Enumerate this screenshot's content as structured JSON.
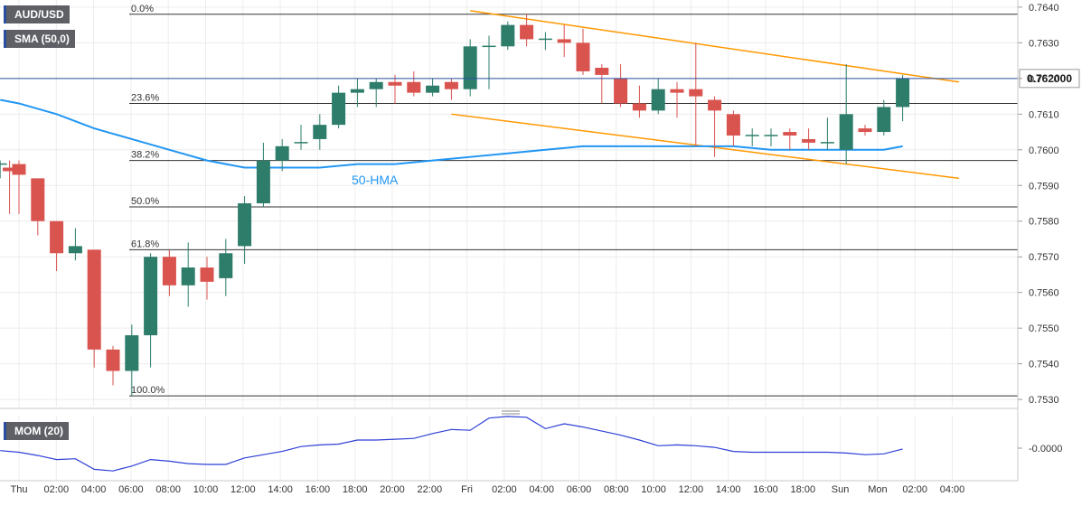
{
  "symbol_label": "AUD/USD",
  "indicator_label": "SMA (50,0)",
  "hma_label": "50-HMA",
  "mom_label": "MOM (20)",
  "price_tag": "0.762000",
  "mom_tick_label": "-0.0000",
  "colors": {
    "up": "#2e7d6b",
    "down": "#d9534f",
    "hma": "#2196f3",
    "channel": "#ff9800",
    "mom": "#2e3fd6",
    "grid": "#ececec",
    "fib": "#333333",
    "price_tag_bg": "#ffffff"
  },
  "chart_data": {
    "type": "candlestick",
    "y_ticks": [
      "0.7640",
      "0.7630",
      "0.7620",
      "0.7610",
      "0.7600",
      "0.7590",
      "0.7580",
      "0.7570",
      "0.7560",
      "0.7550",
      "0.7540",
      "0.7530"
    ],
    "ylim": [
      0.7528,
      0.7642
    ],
    "x_ticks": [
      "Thu",
      "02:00",
      "04:00",
      "06:00",
      "08:00",
      "10:00",
      "12:00",
      "14:00",
      "16:00",
      "18:00",
      "20:00",
      "22:00",
      "Fri",
      "02:00",
      "04:00",
      "06:00",
      "08:00",
      "10:00",
      "12:00",
      "14:00",
      "16:00",
      "18:00",
      "Sun",
      "Mon",
      "02:00",
      "04:00"
    ],
    "fib_levels": [
      {
        "label": "0.0%",
        "value": 0.7638
      },
      {
        "label": "23.6%",
        "value": 0.7613
      },
      {
        "label": "38.2%",
        "value": 0.7597
      },
      {
        "label": "50.0%",
        "value": 0.7584
      },
      {
        "label": "61.8%",
        "value": 0.7572
      },
      {
        "label": "100.0%",
        "value": 0.7531
      }
    ],
    "current_price": 0.762,
    "candles": [
      {
        "t": -1,
        "o": 0.7596,
        "h": 0.7597,
        "l": 0.7592,
        "c": 0.7596
      },
      {
        "t": -0.5,
        "o": 0.7595,
        "h": 0.7597,
        "l": 0.7582,
        "c": 0.7594
      },
      {
        "t": 0,
        "o": 0.7596,
        "h": 0.7597,
        "l": 0.7582,
        "c": 0.7593
      },
      {
        "t": 1,
        "o": 0.7592,
        "h": 0.7592,
        "l": 0.7576,
        "c": 0.758
      },
      {
        "t": 2,
        "o": 0.758,
        "h": 0.758,
        "l": 0.7566,
        "c": 0.7571
      },
      {
        "t": 3,
        "o": 0.7571,
        "h": 0.7578,
        "l": 0.7569,
        "c": 0.7573
      },
      {
        "t": 4,
        "o": 0.7572,
        "h": 0.7572,
        "l": 0.7539,
        "c": 0.7544
      },
      {
        "t": 5,
        "o": 0.7544,
        "h": 0.7545,
        "l": 0.7534,
        "c": 0.7538
      },
      {
        "t": 6,
        "o": 0.7538,
        "h": 0.7551,
        "l": 0.7531,
        "c": 0.7548
      },
      {
        "t": 7,
        "o": 0.7548,
        "h": 0.7571,
        "l": 0.7539,
        "c": 0.757
      },
      {
        "t": 8,
        "o": 0.757,
        "h": 0.7572,
        "l": 0.7559,
        "c": 0.7562
      },
      {
        "t": 9,
        "o": 0.7562,
        "h": 0.7574,
        "l": 0.7556,
        "c": 0.7567
      },
      {
        "t": 10,
        "o": 0.7567,
        "h": 0.757,
        "l": 0.7558,
        "c": 0.7563
      },
      {
        "t": 11,
        "o": 0.7564,
        "h": 0.7575,
        "l": 0.7559,
        "c": 0.7571
      },
      {
        "t": 12,
        "o": 0.7573,
        "h": 0.7587,
        "l": 0.7568,
        "c": 0.7585
      },
      {
        "t": 13,
        "o": 0.7585,
        "h": 0.7602,
        "l": 0.7584,
        "c": 0.7597
      },
      {
        "t": 14,
        "o": 0.7597,
        "h": 0.7603,
        "l": 0.7594,
        "c": 0.7601
      },
      {
        "t": 15,
        "o": 0.7602,
        "h": 0.7607,
        "l": 0.76,
        "c": 0.7602
      },
      {
        "t": 16,
        "o": 0.7603,
        "h": 0.761,
        "l": 0.76,
        "c": 0.7607
      },
      {
        "t": 17,
        "o": 0.7607,
        "h": 0.7618,
        "l": 0.7606,
        "c": 0.7616
      },
      {
        "t": 18,
        "o": 0.7616,
        "h": 0.762,
        "l": 0.7612,
        "c": 0.7617
      },
      {
        "t": 19,
        "o": 0.7617,
        "h": 0.762,
        "l": 0.7612,
        "c": 0.7619
      },
      {
        "t": 20,
        "o": 0.7619,
        "h": 0.7621,
        "l": 0.7613,
        "c": 0.7618
      },
      {
        "t": 21,
        "o": 0.7619,
        "h": 0.7622,
        "l": 0.7615,
        "c": 0.7616
      },
      {
        "t": 22,
        "o": 0.7616,
        "h": 0.762,
        "l": 0.7615,
        "c": 0.7618
      },
      {
        "t": 23,
        "o": 0.7619,
        "h": 0.762,
        "l": 0.7614,
        "c": 0.7617
      },
      {
        "t": 24,
        "o": 0.7617,
        "h": 0.7631,
        "l": 0.7615,
        "c": 0.7629
      },
      {
        "t": 25,
        "o": 0.7629,
        "h": 0.7632,
        "l": 0.7617,
        "c": 0.7629
      },
      {
        "t": 26,
        "o": 0.7629,
        "h": 0.7636,
        "l": 0.7628,
        "c": 0.7635
      },
      {
        "t": 27,
        "o": 0.7635,
        "h": 0.7638,
        "l": 0.7629,
        "c": 0.7631
      },
      {
        "t": 28,
        "o": 0.7631,
        "h": 0.7633,
        "l": 0.7628,
        "c": 0.7631
      },
      {
        "t": 29,
        "o": 0.7631,
        "h": 0.7635,
        "l": 0.7626,
        "c": 0.763
      },
      {
        "t": 30,
        "o": 0.763,
        "h": 0.7634,
        "l": 0.7621,
        "c": 0.7622
      },
      {
        "t": 31,
        "o": 0.7623,
        "h": 0.7624,
        "l": 0.7613,
        "c": 0.7621
      },
      {
        "t": 32,
        "o": 0.762,
        "h": 0.7624,
        "l": 0.7612,
        "c": 0.7613
      },
      {
        "t": 33,
        "o": 0.7613,
        "h": 0.7618,
        "l": 0.7609,
        "c": 0.7611
      },
      {
        "t": 34,
        "o": 0.7611,
        "h": 0.762,
        "l": 0.761,
        "c": 0.7617
      },
      {
        "t": 35,
        "o": 0.7617,
        "h": 0.7619,
        "l": 0.7609,
        "c": 0.7616
      },
      {
        "t": 36,
        "o": 0.7617,
        "h": 0.763,
        "l": 0.7601,
        "c": 0.7615
      },
      {
        "t": 37,
        "o": 0.7614,
        "h": 0.7615,
        "l": 0.7598,
        "c": 0.7611
      },
      {
        "t": 38,
        "o": 0.761,
        "h": 0.7611,
        "l": 0.7601,
        "c": 0.7604
      },
      {
        "t": 39,
        "o": 0.7604,
        "h": 0.7606,
        "l": 0.7601,
        "c": 0.7604
      },
      {
        "t": 40,
        "o": 0.7604,
        "h": 0.7606,
        "l": 0.7601,
        "c": 0.7604
      },
      {
        "t": 41,
        "o": 0.7605,
        "h": 0.7606,
        "l": 0.76,
        "c": 0.7604
      },
      {
        "t": 42,
        "o": 0.7603,
        "h": 0.7606,
        "l": 0.76,
        "c": 0.7602
      },
      {
        "t": 43,
        "o": 0.7602,
        "h": 0.7609,
        "l": 0.76,
        "c": 0.7602
      },
      {
        "t": 44,
        "o": 0.76,
        "h": 0.7624,
        "l": 0.7596,
        "c": 0.761
      },
      {
        "t": 45,
        "o": 0.7606,
        "h": 0.7607,
        "l": 0.7604,
        "c": 0.7605
      },
      {
        "t": 46,
        "o": 0.7605,
        "h": 0.7614,
        "l": 0.7604,
        "c": 0.7612
      },
      {
        "t": 47,
        "o": 0.7612,
        "h": 0.7621,
        "l": 0.7608,
        "c": 0.762
      }
    ],
    "hma": [
      [
        -1,
        0.7614
      ],
      [
        0,
        0.7613
      ],
      [
        2,
        0.761
      ],
      [
        4,
        0.7606
      ],
      [
        6,
        0.7603
      ],
      [
        8,
        0.76
      ],
      [
        10,
        0.7597
      ],
      [
        12,
        0.7595
      ],
      [
        14,
        0.7595
      ],
      [
        16,
        0.7595
      ],
      [
        18,
        0.7596
      ],
      [
        20,
        0.7596
      ],
      [
        22,
        0.7597
      ],
      [
        24,
        0.7598
      ],
      [
        26,
        0.7599
      ],
      [
        28,
        0.76
      ],
      [
        30,
        0.7601
      ],
      [
        32,
        0.7601
      ],
      [
        34,
        0.7601
      ],
      [
        36,
        0.7601
      ],
      [
        38,
        0.7601
      ],
      [
        40,
        0.76
      ],
      [
        42,
        0.76
      ],
      [
        44,
        0.76
      ],
      [
        46,
        0.76
      ],
      [
        47,
        0.7601
      ]
    ],
    "channel_upper": [
      [
        24,
        0.7639
      ],
      [
        50,
        0.7619
      ]
    ],
    "channel_lower": [
      [
        23,
        0.761
      ],
      [
        50,
        0.7592
      ]
    ],
    "momentum": {
      "name": "MOM (20)",
      "ylim": [
        -0.004,
        0.004
      ],
      "values": [
        [
          -1,
          -0.0003
        ],
        [
          0,
          -0.0005
        ],
        [
          1,
          -0.0009
        ],
        [
          2,
          -0.0014
        ],
        [
          3,
          -0.0013
        ],
        [
          4,
          -0.0026
        ],
        [
          5,
          -0.0028
        ],
        [
          6,
          -0.0022
        ],
        [
          7,
          -0.0014
        ],
        [
          8,
          -0.0016
        ],
        [
          9,
          -0.0019
        ],
        [
          10,
          -0.002
        ],
        [
          11,
          -0.002
        ],
        [
          12,
          -0.0012
        ],
        [
          13,
          -0.0008
        ],
        [
          14,
          -0.0004
        ],
        [
          15,
          0.0002
        ],
        [
          16,
          0.0004
        ],
        [
          17,
          0.0005
        ],
        [
          18,
          0.001
        ],
        [
          19,
          0.001
        ],
        [
          20,
          0.0011
        ],
        [
          21,
          0.0012
        ],
        [
          22,
          0.0018
        ],
        [
          23,
          0.0023
        ],
        [
          24,
          0.0022
        ],
        [
          25,
          0.0037
        ],
        [
          26,
          0.0039
        ],
        [
          27,
          0.0038
        ],
        [
          28,
          0.0024
        ],
        [
          29,
          0.003
        ],
        [
          30,
          0.0026
        ],
        [
          31,
          0.0021
        ],
        [
          32,
          0.0016
        ],
        [
          33,
          0.001
        ],
        [
          34,
          0.0003
        ],
        [
          35,
          0.0004
        ],
        [
          36,
          0.0003
        ],
        [
          37,
          0.0001
        ],
        [
          38,
          -0.0004
        ],
        [
          39,
          -0.0005
        ],
        [
          40,
          -0.0005
        ],
        [
          41,
          -0.0005
        ],
        [
          42,
          -0.0005
        ],
        [
          43,
          -0.0005
        ],
        [
          44,
          -0.0006
        ],
        [
          45,
          -0.0008
        ],
        [
          46,
          -0.0007
        ],
        [
          47,
          -0.0001
        ]
      ]
    }
  }
}
